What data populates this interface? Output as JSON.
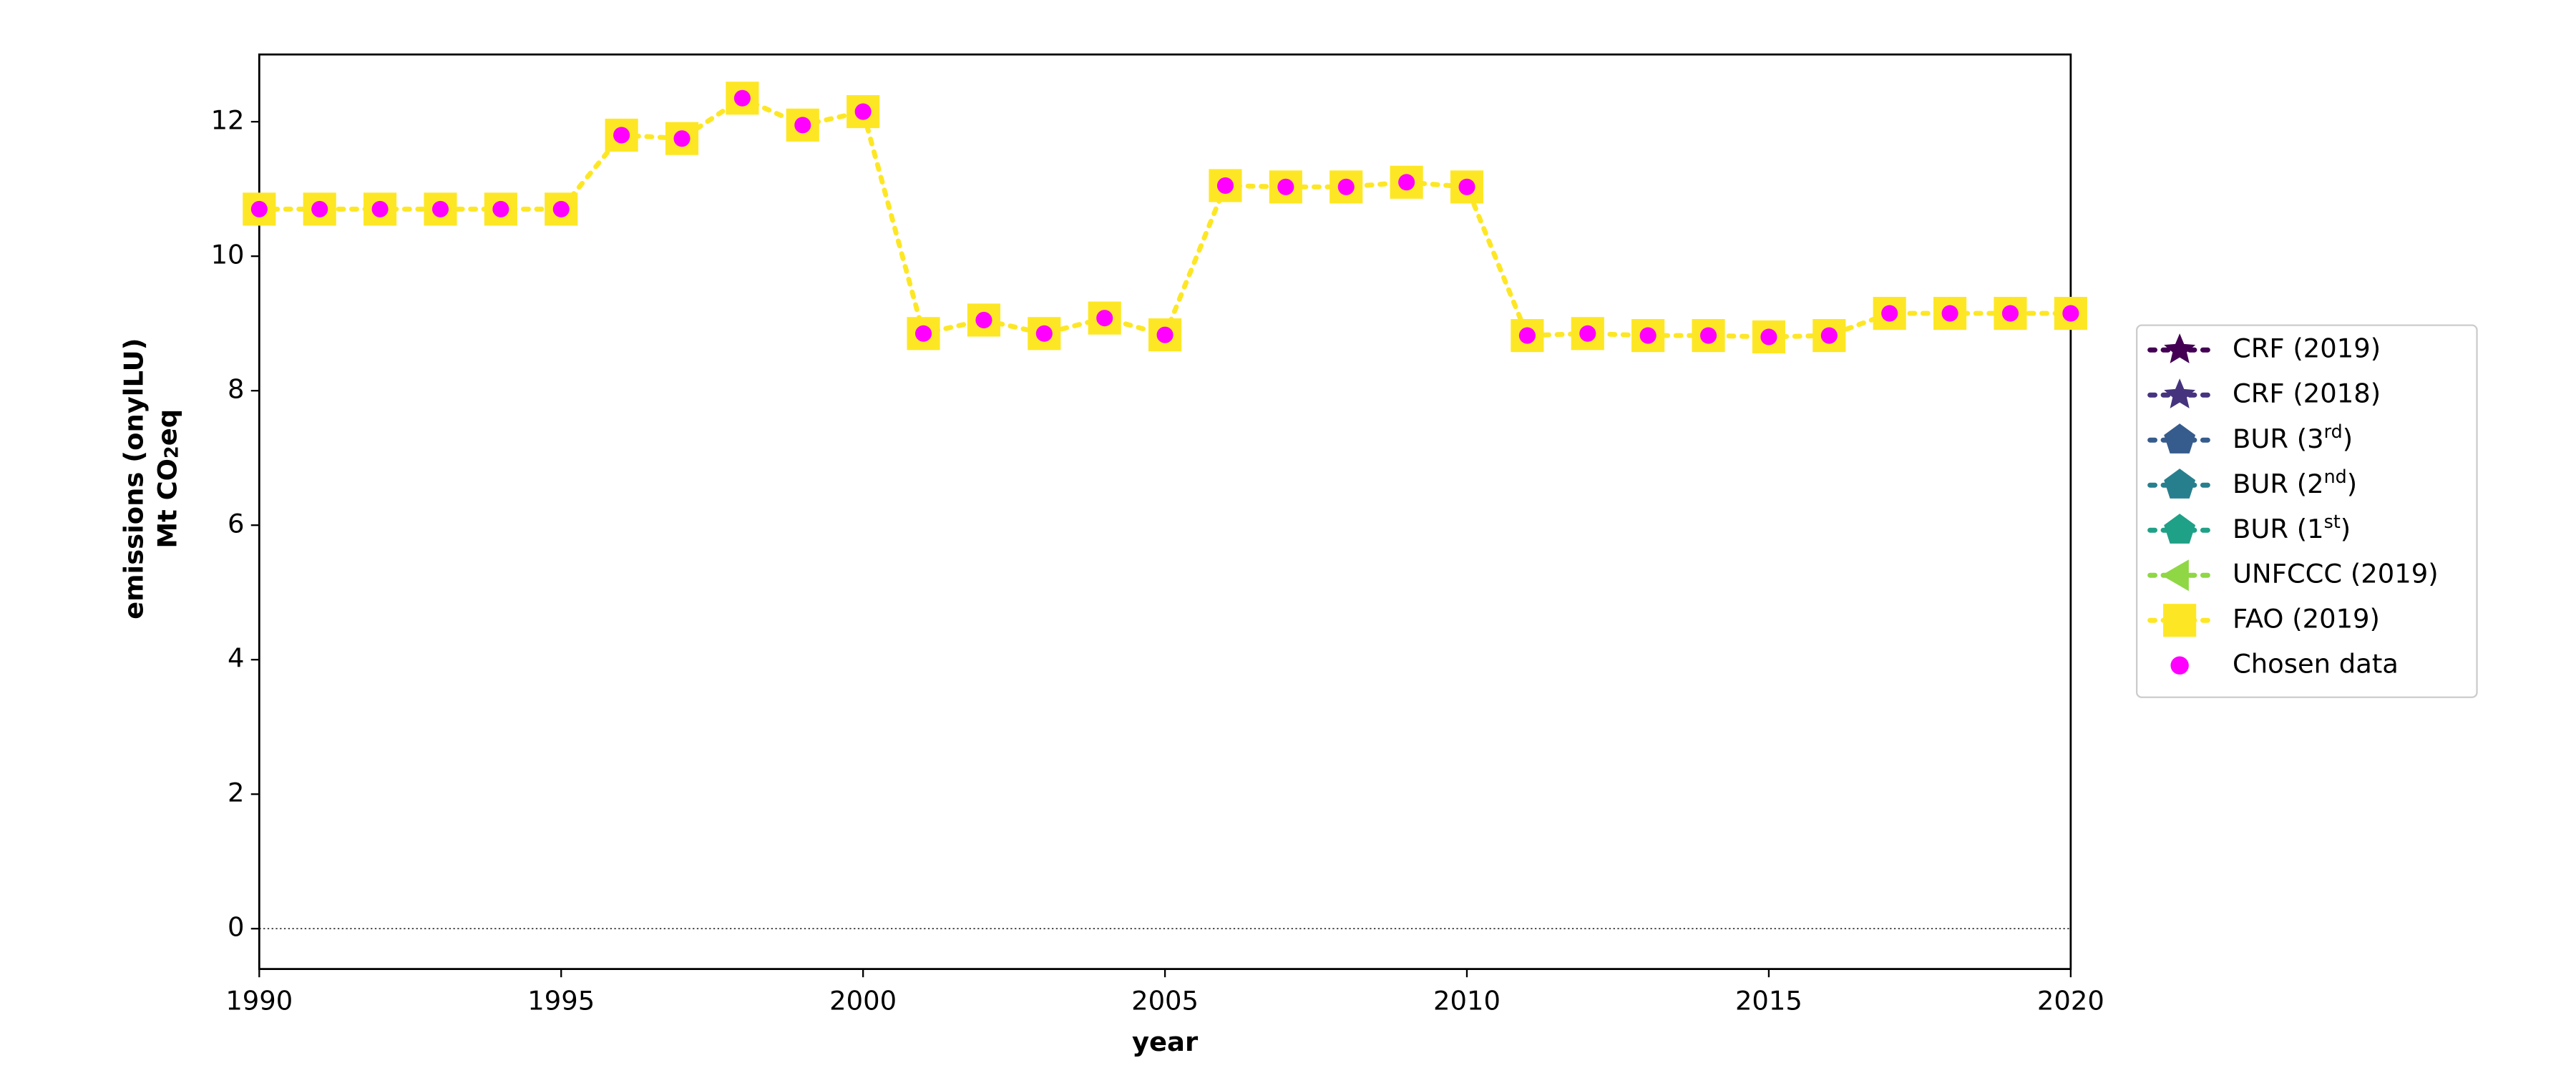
{
  "chart_data": {
    "type": "line",
    "xlabel": "year",
    "ylabel": [
      "emissions (onylLU)",
      "Mt CO2eq"
    ],
    "x": [
      1990,
      1991,
      1992,
      1993,
      1994,
      1995,
      1996,
      1997,
      1998,
      1999,
      2000,
      2001,
      2002,
      2003,
      2004,
      2005,
      2006,
      2007,
      2008,
      2009,
      2010,
      2011,
      2012,
      2013,
      2014,
      2015,
      2016,
      2017,
      2018,
      2019,
      2020
    ],
    "xlim": [
      1990,
      2020
    ],
    "xticks": [
      1990,
      1995,
      2000,
      2005,
      2010,
      2015,
      2020
    ],
    "ylim": [
      -0.6,
      13
    ],
    "yticks": [
      0,
      2,
      4,
      6,
      8,
      10,
      12
    ],
    "hline": 0,
    "legend": "right",
    "series": [
      {
        "name": "CRF (2019)",
        "color": "#440154",
        "marker": "star"
      },
      {
        "name": "CRF (2018)",
        "color": "#46337e",
        "marker": "star"
      },
      {
        "name": "BUR (3rd)",
        "color": "#365c8d",
        "marker": "pentagon"
      },
      {
        "name": "BUR (2nd)",
        "color": "#277f8e",
        "marker": "pentagon"
      },
      {
        "name": "BUR (1st)",
        "color": "#1fa187",
        "marker": "pentagon"
      },
      {
        "name": "UNFCCC (2019)",
        "color": "#8fd744",
        "marker": "triangle-left"
      },
      {
        "name": "FAO (2019)",
        "color": "#fde725",
        "marker": "square",
        "line": "dotted",
        "values": [
          10.7,
          10.7,
          10.7,
          10.7,
          10.7,
          10.7,
          11.8,
          11.75,
          12.35,
          11.95,
          12.15,
          8.85,
          9.05,
          8.85,
          9.08,
          8.83,
          11.05,
          11.03,
          11.03,
          11.1,
          11.03,
          8.82,
          8.85,
          8.82,
          8.82,
          8.8,
          8.82,
          9.15,
          9.15,
          9.15,
          9.15
        ]
      },
      {
        "name": "Chosen data",
        "color": "#ff00ff",
        "marker": "circle",
        "line": "none",
        "values": [
          10.7,
          10.7,
          10.7,
          10.7,
          10.7,
          10.7,
          11.8,
          11.75,
          12.35,
          11.95,
          12.15,
          8.85,
          9.05,
          8.85,
          9.08,
          8.83,
          11.05,
          11.03,
          11.03,
          11.1,
          11.03,
          8.82,
          8.85,
          8.82,
          8.82,
          8.8,
          8.82,
          9.15,
          9.15,
          9.15,
          9.15
        ]
      }
    ]
  }
}
